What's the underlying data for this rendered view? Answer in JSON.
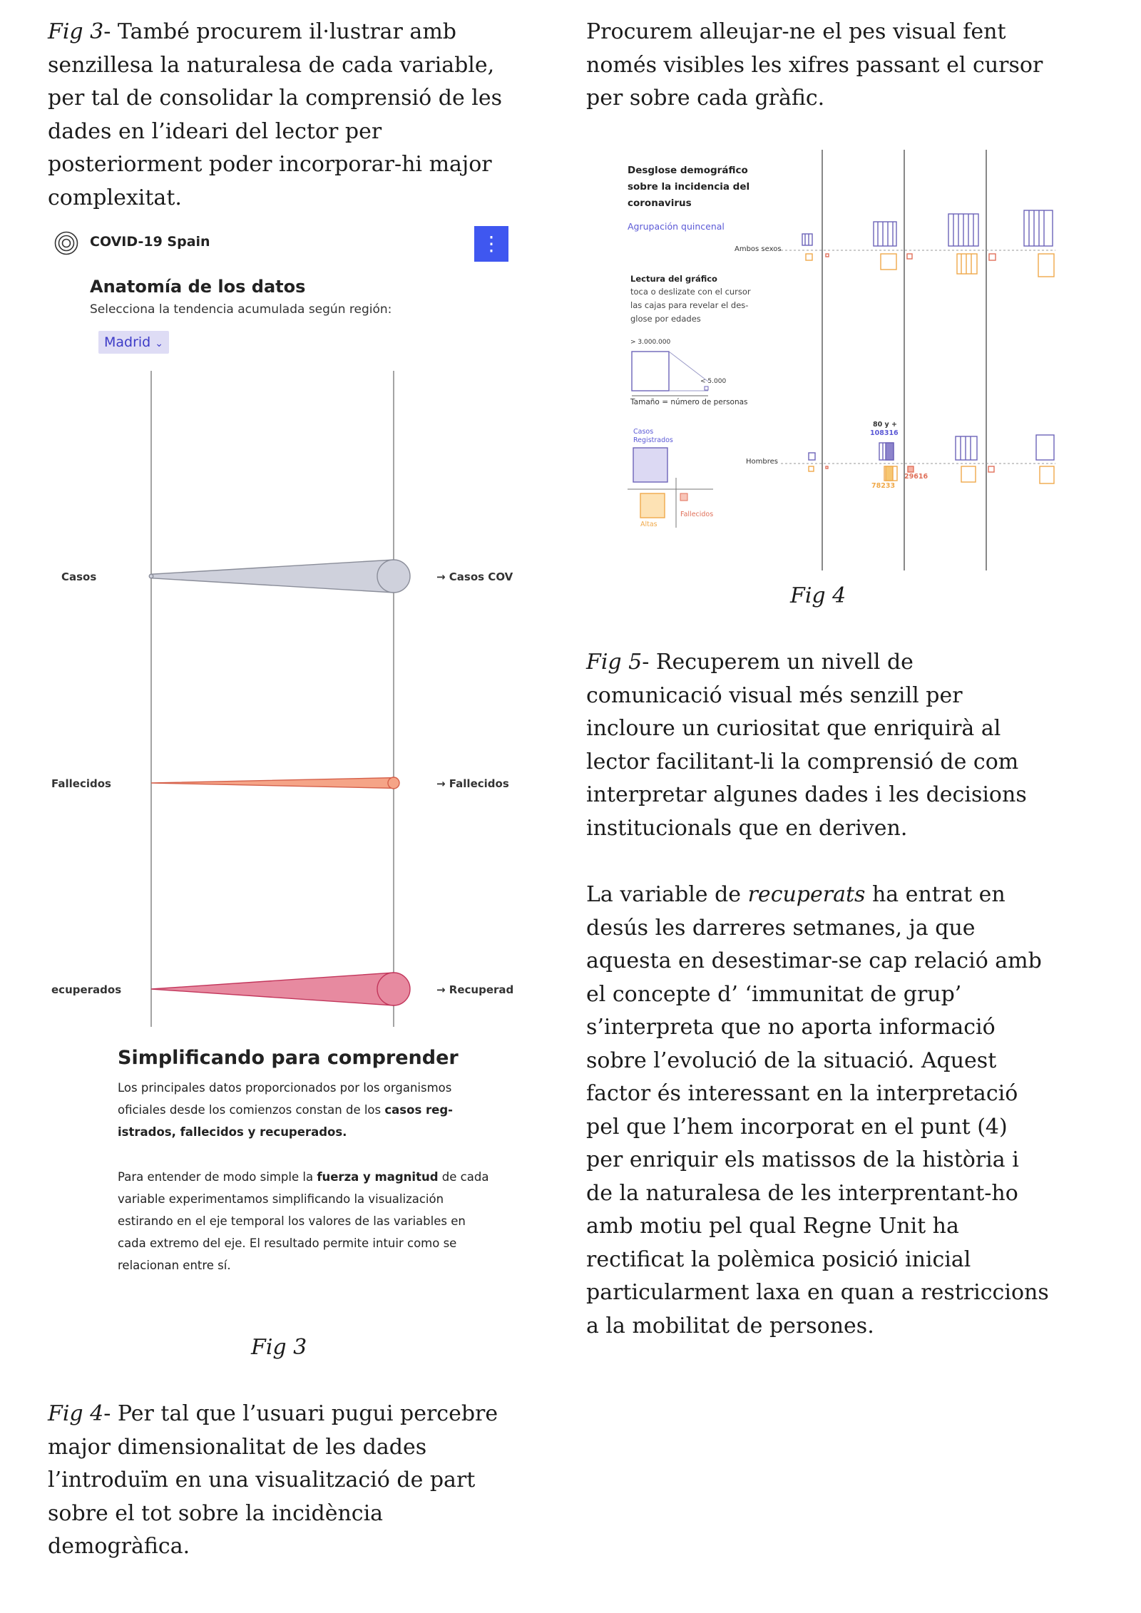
{
  "left_column": {
    "intro_paragraph": {
      "lead": "Fig 3",
      "text": "- També procurem il·lustrar amb senzillesa la naturalesa de cada variable, per tal de consolidar la comprensió de les dades en l’ideari del lector per posteriorment poder incorporar-hi major complexitat."
    },
    "fig3_caption": "Fig 3",
    "fig4_paragraph": {
      "lead": "Fig 4",
      "text": "- Per tal que l’usuari pugui percebre major dimensionalitat de les dades l’introduïm en una visualització de part sobre el tot sobre la incidència demogràfica."
    }
  },
  "right_column": {
    "intro_paragraph": "Procurem alleujar-ne el pes visual fent només visibles les xifres passant el cursor per sobre cada gràfic.",
    "fig4_caption": "Fig 4",
    "fig5_paragraph": {
      "lead": "Fig 5",
      "text": "- Recuperem un nivell de comunicació visual més senzill per incloure un curiositat que enriquirà  al lector facilitant-li la comprensió de com interpretar algunes dades i les decisions institucionals que en deriven."
    },
    "recuperats_paragraph": {
      "before": "La variable de ",
      "italic": "recuperats",
      "after": " ha entrat en desús les darreres setmanes, ja que aquesta en desestimar-se cap relació amb el concepte d’ ‘immunitat de grup’ s’interpreta que no aporta informació sobre l’evolució de la situació. Aquest factor és interessant en la interpretació pel que l’hem incorporat en el punt (4) per enriquir els matissos de la història i de la naturalesa de les interprentant-ho amb motiu pel qual Regne Unit ha rectificat la polèmica posició inicial particularment  laxa en quan a restriccions a la mobilitat de persones."
    }
  },
  "fig3": {
    "app_name": "COVID-19 Spain",
    "menu_icon": "⋮",
    "title": "Anatomía de los datos",
    "subtitle": "Selecciona la tendencia acumulada según región:",
    "region_selected": "Madrid",
    "region_chevron": "⌄",
    "rows": [
      {
        "left_label": "Casos",
        "right_label": "→ Casos COV",
        "color": "#cfd1dc",
        "stroke": "#8a8d99",
        "start_value": 0.12,
        "end_value": 1.0
      },
      {
        "left_label": "Fallecidos",
        "right_label": "→ Fallecidos",
        "color": "#f5a487",
        "stroke": "#d5604a",
        "start_value": 0.0,
        "end_value": 0.32
      },
      {
        "left_label": "ecuperados",
        "right_label": "→ Recuperad",
        "color": "#e78aa0",
        "stroke": "#c2365b",
        "start_value": 0.0,
        "end_value": 1.0
      }
    ],
    "block_title": "Simplificando para comprender",
    "block_p1": {
      "a": "Los principales datos proporcionados por los organismos oficiales desde los comienzos constan de los ",
      "b": "casos reg-istrados, fallecidos y recuperados."
    },
    "block_p2": {
      "a": "Para entender de modo simple la ",
      "b": "fuerza y magnitud",
      "c": " de cada variable experimentamos simplificando la visualización estirando en el eje temporal los valores de las variables en cada extremo del eje. El resultado permite intuir como se relacionan entre sí."
    }
  },
  "fig4": {
    "title_lines": [
      "Desglose demográfico",
      "sobre la incidencia del",
      "coronavirus"
    ],
    "grouping": "Agrupación quincenal",
    "row_top_label": "Ambos sexos",
    "row_bottom_label": "Hombres",
    "reading_title": "Lectura del gráfico",
    "reading_lines": [
      "toca o deslizate con el cursor",
      "las cajas para revelar el des-",
      "glose por edades"
    ],
    "legend_max": "> 3.000.000",
    "legend_min": "< 5.000",
    "legend_size": "Tamaño = número de personas",
    "legend_registered": [
      "Casos",
      "Registrados"
    ],
    "legend_deaths": "Fallecidos",
    "legend_recovered": "Altas",
    "hover_age": "80 y +",
    "hover_cases": "108316",
    "hover_recovered": "78233",
    "hover_deaths": "29616",
    "colors": {
      "cases": "#6d63b8",
      "recovered": "#f0a94a",
      "deaths": "#e0705a",
      "axis": "#888888"
    }
  }
}
